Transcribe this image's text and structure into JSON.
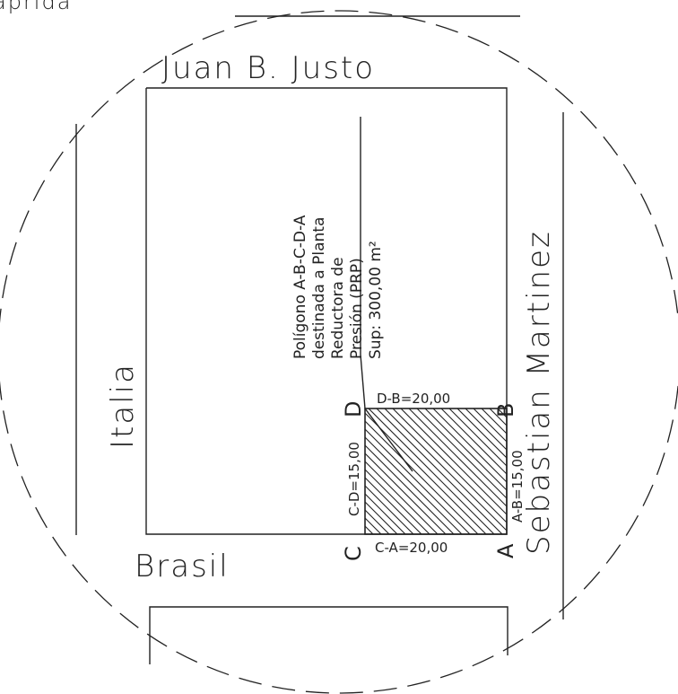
{
  "colors": {
    "ink": "#222222",
    "background": "#ffffff"
  },
  "header": {
    "cropped_text": "aprida"
  },
  "streets": {
    "north": "Juan B. Justo",
    "west": "Italia",
    "south": "Brasil",
    "east": "Sebastian Martinez"
  },
  "note": {
    "lines": [
      "Polígono A-B-C-D-A",
      "destinada a Planta",
      "Reductora de",
      "Presión (PRP)",
      "Sup: 300,00 m²"
    ]
  },
  "vertices": {
    "a": "A",
    "b": "B",
    "c": "C",
    "d": "D"
  },
  "dimensions": {
    "db": "D-B=20,00",
    "ab": "A-B=15,00",
    "cd": "C-D=15,00",
    "ca": "C-A=20,00"
  }
}
